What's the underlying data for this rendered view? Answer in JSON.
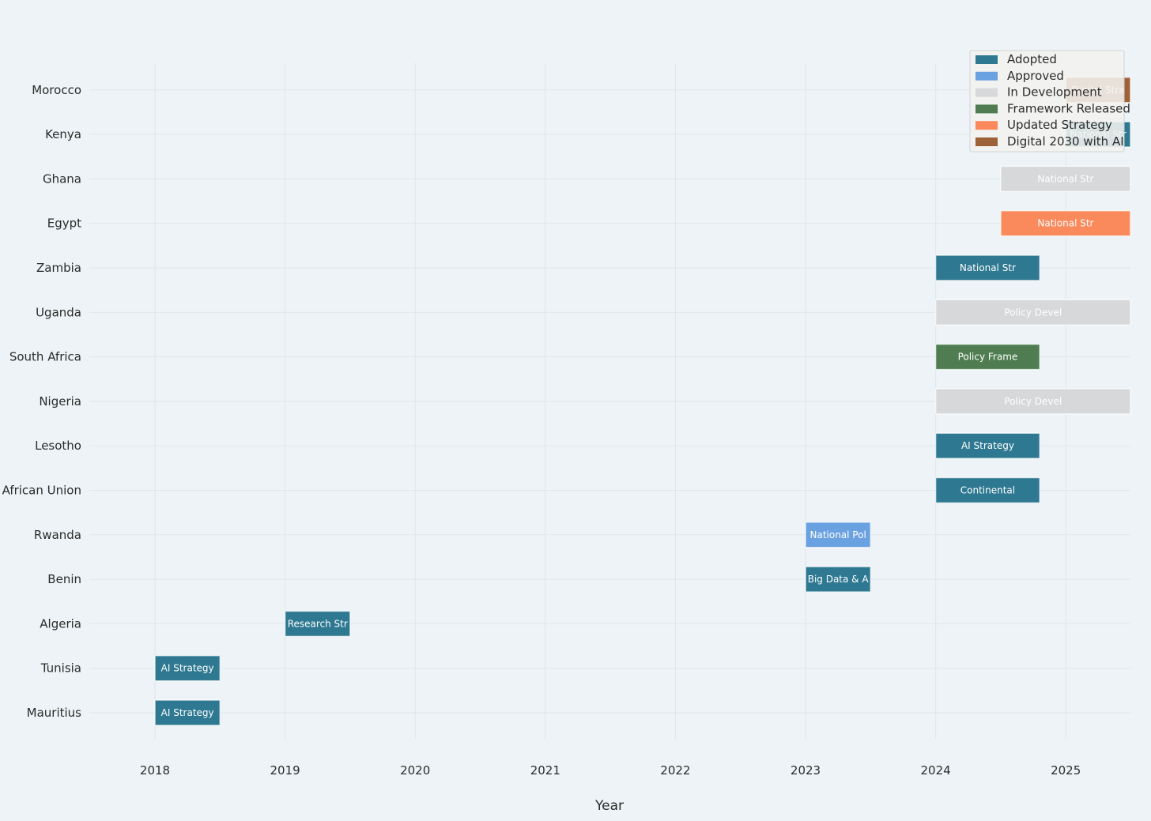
{
  "chart_data": {
    "type": "timeline",
    "title": "",
    "xlabel": "Year",
    "ylabel": "",
    "xlim": [
      2017.5,
      2025.5
    ],
    "x_ticks": [
      2018,
      2019,
      2020,
      2021,
      2022,
      2023,
      2024,
      2025
    ],
    "grid": true,
    "legend_position": "top-right",
    "categories": [
      "Mauritius",
      "Tunisia",
      "Algeria",
      "Benin",
      "Rwanda",
      "African Union",
      "Lesotho",
      "Nigeria",
      "South Africa",
      "Uganda",
      "Zambia",
      "Egypt",
      "Ghana",
      "Kenya",
      "Morocco"
    ],
    "status_legend": [
      {
        "name": "Adopted",
        "color": "#2e7891"
      },
      {
        "name": "Approved",
        "color": "#6aa1e0"
      },
      {
        "name": "In Development",
        "color": "#d6d8d9"
      },
      {
        "name": "Framework Released",
        "color": "#4f7d51"
      },
      {
        "name": "Updated Strategy",
        "color": "#fa8a5c"
      },
      {
        "name": "Digital 2030 with AI",
        "color": "#9e6238"
      }
    ],
    "bars": [
      {
        "country": "Mauritius",
        "start": 2018.0,
        "end": 2018.5,
        "status": "Adopted",
        "label": "AI Strategy"
      },
      {
        "country": "Tunisia",
        "start": 2018.0,
        "end": 2018.5,
        "status": "Adopted",
        "label": "AI Strategy"
      },
      {
        "country": "Algeria",
        "start": 2019.0,
        "end": 2019.5,
        "status": "Adopted",
        "label": "Research Str"
      },
      {
        "country": "Benin",
        "start": 2023.0,
        "end": 2023.5,
        "status": "Adopted",
        "label": "Big Data & A"
      },
      {
        "country": "Rwanda",
        "start": 2023.0,
        "end": 2023.5,
        "status": "Approved",
        "label": "National Pol"
      },
      {
        "country": "African Union",
        "start": 2024.0,
        "end": 2024.8,
        "status": "Adopted",
        "label": "Continental"
      },
      {
        "country": "Lesotho",
        "start": 2024.0,
        "end": 2024.8,
        "status": "Adopted",
        "label": "AI Strategy"
      },
      {
        "country": "Nigeria",
        "start": 2024.0,
        "end": 2025.5,
        "status": "In Development",
        "label": "Policy Devel"
      },
      {
        "country": "South Africa",
        "start": 2024.0,
        "end": 2024.8,
        "status": "Framework Released",
        "label": "Policy Frame"
      },
      {
        "country": "Uganda",
        "start": 2024.0,
        "end": 2025.5,
        "status": "In Development",
        "label": "Policy Devel"
      },
      {
        "country": "Zambia",
        "start": 2024.0,
        "end": 2024.8,
        "status": "Adopted",
        "label": "National Str"
      },
      {
        "country": "Egypt",
        "start": 2024.5,
        "end": 2025.5,
        "status": "Updated Strategy",
        "label": "National Str"
      },
      {
        "country": "Ghana",
        "start": 2024.5,
        "end": 2025.5,
        "status": "In Development",
        "label": "National Str"
      },
      {
        "country": "Kenya",
        "start": 2025.0,
        "end": 2025.5,
        "status": "Adopted",
        "label": "National Str"
      },
      {
        "country": "Morocco",
        "start": 2025.0,
        "end": 2025.5,
        "status": "Digital 2030 with AI",
        "label": "Digital Stra"
      }
    ]
  }
}
